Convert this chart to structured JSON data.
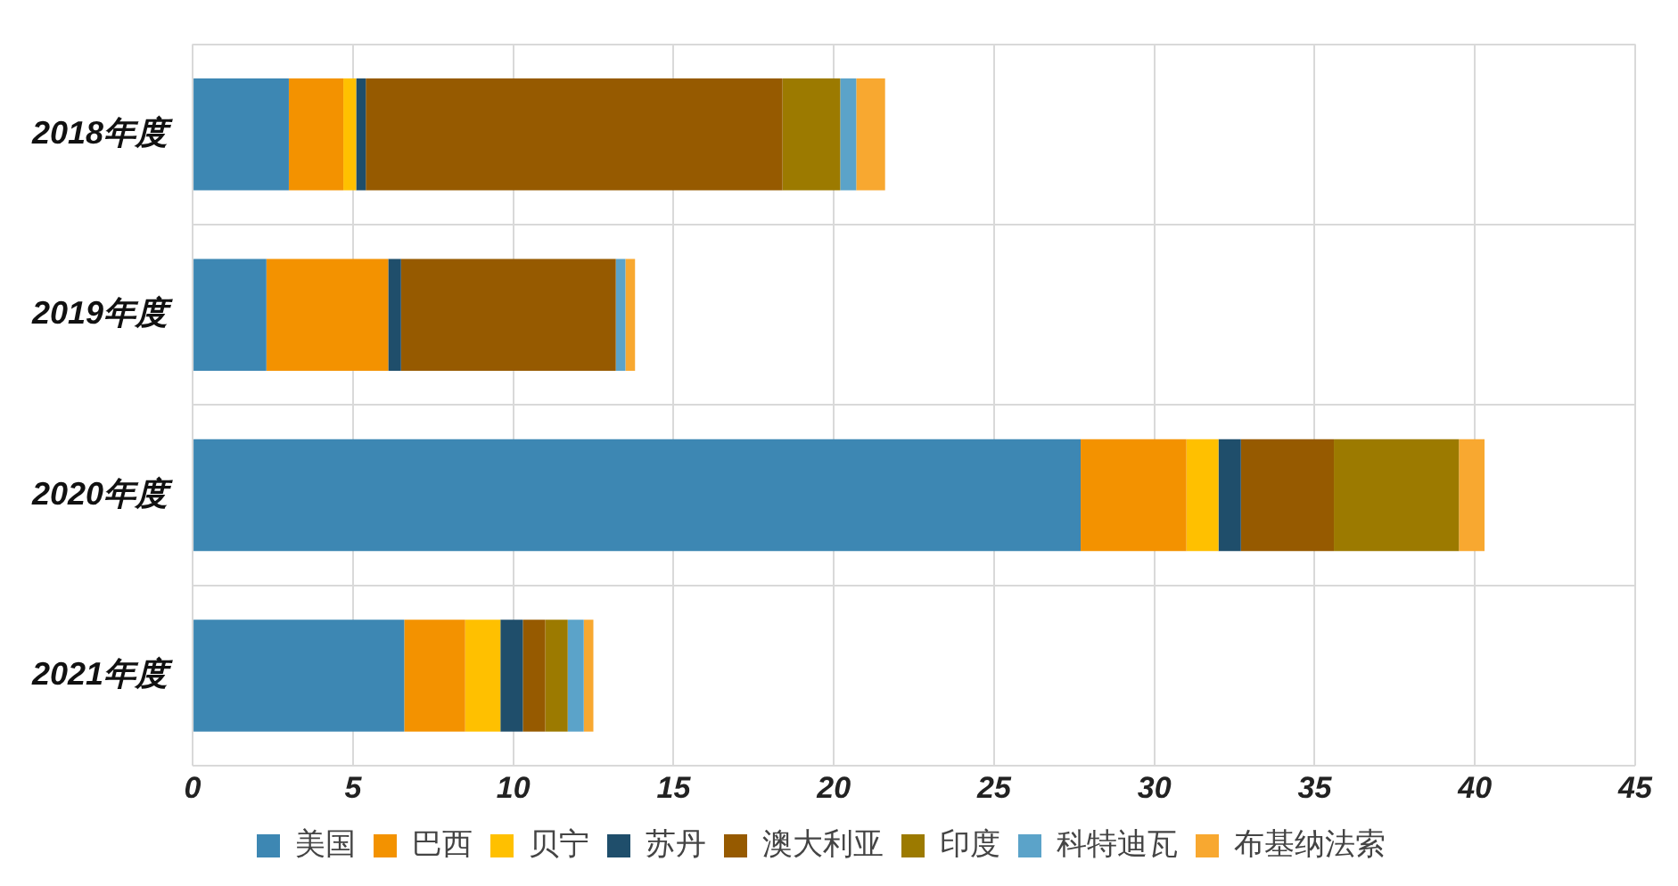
{
  "chart_data": {
    "type": "bar",
    "orientation": "horizontal",
    "stacked": true,
    "categories": [
      "2018年度",
      "2019年度",
      "2020年度",
      "2021年度"
    ],
    "series": [
      {
        "name": "美国",
        "color": "#3d87b3",
        "values": [
          3.0,
          2.3,
          27.7,
          6.6
        ]
      },
      {
        "name": "巴西",
        "color": "#f39200",
        "values": [
          1.7,
          3.8,
          3.3,
          1.9
        ]
      },
      {
        "name": "贝宁",
        "color": "#ffc000",
        "values": [
          0.4,
          0,
          1.0,
          1.1
        ]
      },
      {
        "name": "苏丹",
        "color": "#1f4e6b",
        "values": [
          0.3,
          0.4,
          0.7,
          0.7
        ]
      },
      {
        "name": "澳大利亚",
        "color": "#965a00",
        "values": [
          13.0,
          6.7,
          2.9,
          0.7
        ]
      },
      {
        "name": "印度",
        "color": "#9c7a00",
        "values": [
          1.8,
          0,
          3.9,
          0.7
        ]
      },
      {
        "name": "科特迪瓦",
        "color": "#5ba3c9",
        "values": [
          0.5,
          0.3,
          0,
          0.5
        ]
      },
      {
        "name": "布基纳法索",
        "color": "#f8a830",
        "values": [
          0.9,
          0.3,
          0.8,
          0.3
        ]
      }
    ],
    "xlim": [
      0,
      45
    ],
    "xticks": [
      0,
      5,
      10,
      15,
      20,
      25,
      30,
      35,
      40,
      45
    ],
    "grid": true,
    "legend": "bottom"
  }
}
